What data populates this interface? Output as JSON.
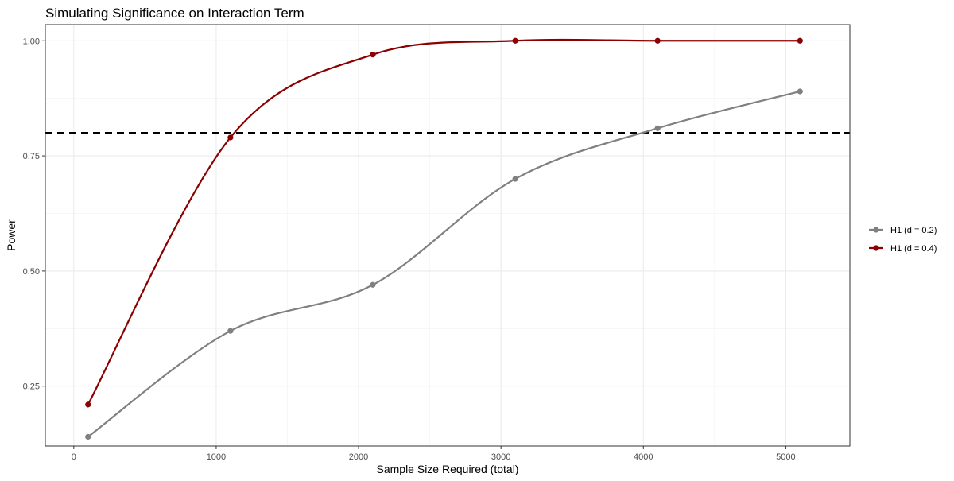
{
  "chart_data": {
    "type": "line",
    "title": "Simulating Significance on Interaction Term",
    "xlabel": "Sample Size Required (total)",
    "ylabel": "Power",
    "xlim": [
      -200,
      5450
    ],
    "ylim": [
      0.12,
      1.035
    ],
    "x_ticks": [
      0,
      1000,
      2000,
      3000,
      4000,
      5000
    ],
    "x_tick_labels": [
      "0",
      "1000",
      "2000",
      "3000",
      "4000",
      "5000"
    ],
    "y_ticks": [
      0.25,
      0.5,
      0.75,
      1.0
    ],
    "y_tick_labels": [
      "0.25",
      "0.50",
      "0.75",
      "1.00"
    ],
    "grid": true,
    "legend_position": "right",
    "reference_line": {
      "y": 0.8,
      "style": "dashed",
      "color": "#000000"
    },
    "x": [
      100,
      1100,
      2100,
      3100,
      4100,
      5100
    ],
    "series": [
      {
        "name": "H1 (d = 0.2)",
        "color": "#808080",
        "values": [
          0.14,
          0.37,
          0.47,
          0.7,
          0.81,
          0.89
        ]
      },
      {
        "name": "H1 (d = 0.4)",
        "color": "#8b0000",
        "values": [
          0.21,
          0.79,
          0.97,
          1.0,
          1.0,
          1.0
        ]
      }
    ]
  }
}
